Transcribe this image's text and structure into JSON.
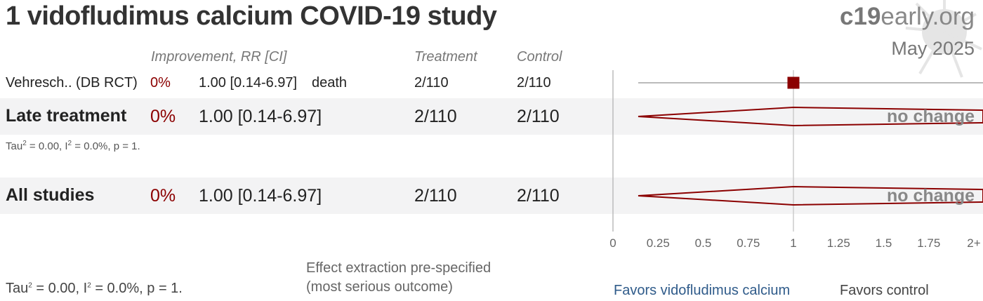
{
  "title": "1 vidofludimus calcium COVID-19 study",
  "brand": {
    "bold": "c19",
    "rest": "early.org"
  },
  "date": "May 2025",
  "headers": {
    "improvement": "Improvement, RR [CI]",
    "treatment": "Treatment",
    "control": "Control"
  },
  "rows": [
    {
      "study": "Vehresch.. (DB RCT)",
      "improvement": "0%",
      "rr": "1.00 [0.14-6.97]",
      "outcome": "death",
      "treatment": "2/110",
      "control": "2/110"
    }
  ],
  "late_treatment": {
    "label": "Late treatment",
    "improvement": "0%",
    "rr": "1.00 [0.14-6.97]",
    "treatment": "2/110",
    "control": "2/110",
    "verdict": "no change"
  },
  "late_stats": {
    "tau": "Tau",
    "tau_rest": " = 0.00, I",
    "i_rest": " = 0.0%, p = 1.",
    "sup": "2"
  },
  "all_studies": {
    "label": "All studies",
    "improvement": "0%",
    "rr": "1.00 [0.14-6.97]",
    "treatment": "2/110",
    "control": "2/110",
    "verdict": "no change"
  },
  "footer_stats": {
    "tau": "Tau",
    "tau_rest": " = 0.00, I",
    "i_rest": " = 0.0%, p = 1.",
    "sup": "2"
  },
  "note": {
    "line1": "Effect extraction pre-specified",
    "line2": "(most serious outcome)"
  },
  "favors": {
    "left": "Favors vidofludimus calcium",
    "right": "Favors control"
  },
  "colors": {
    "marker": "#8b0000",
    "favors_left": "#2f5b8a",
    "favors_right": "#444444",
    "verdict": "#888888"
  },
  "chart_data": {
    "type": "forest",
    "x_ticks": [
      "0",
      "0.25",
      "0.5",
      "0.75",
      "1",
      "1.25",
      "1.5",
      "1.75",
      "2+"
    ],
    "xlim": [
      0,
      2
    ],
    "reference_line": 1,
    "studies": [
      {
        "name": "Vehresch.. (DB RCT)",
        "rr": 1.0,
        "ci_low": 0.14,
        "ci_high": 6.97
      }
    ],
    "pooled": [
      {
        "name": "Late treatment",
        "rr": 1.0,
        "ci_low": 0.14,
        "ci_high": 6.97
      },
      {
        "name": "All studies",
        "rr": 1.0,
        "ci_low": 0.14,
        "ci_high": 6.97
      }
    ]
  }
}
